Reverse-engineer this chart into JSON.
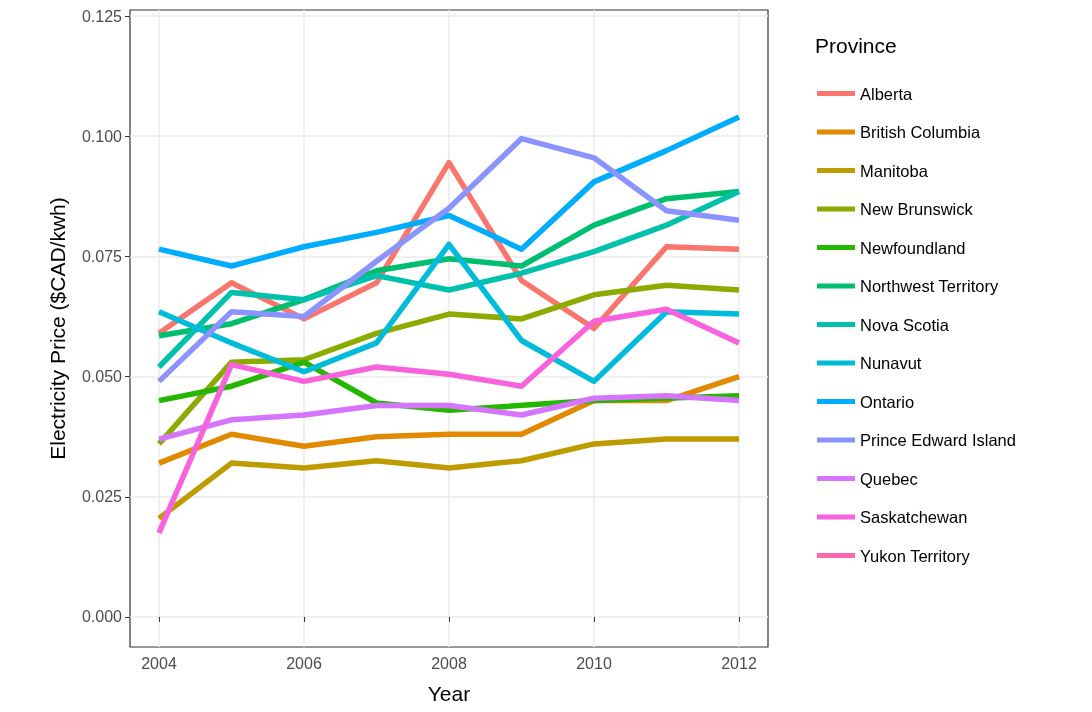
{
  "chart_data": {
    "type": "line",
    "xlabel": "Year",
    "ylabel": "Electricity Price ($CAD/kwh)",
    "legend_title": "Province",
    "legend": "right",
    "grid": true,
    "marker": "none",
    "line_style": "solid",
    "x": [
      2004,
      2005,
      2006,
      2007,
      2008,
      2009,
      2010,
      2011,
      2012
    ],
    "xlim": [
      2003.6,
      2012.4
    ],
    "xticks": [
      2004,
      2006,
      2008,
      2010,
      2012
    ],
    "ylim": [
      -0.00625,
      0.12625
    ],
    "yticks": [
      {
        "value": 0,
        "label": "0.000"
      },
      {
        "value": 0.025,
        "label": "0.025"
      },
      {
        "value": 0.05,
        "label": "0.050"
      },
      {
        "value": 0.075,
        "label": "0.075"
      },
      {
        "value": 0.1,
        "label": "0.100"
      },
      {
        "value": 0.125,
        "label": "0.125"
      }
    ],
    "series": [
      {
        "name": "Alberta",
        "color": "#f8766d",
        "values": [
          0.059,
          0.0695,
          0.062,
          0.0695,
          0.0945,
          0.07,
          0.06,
          0.077,
          0.0765
        ]
      },
      {
        "name": "British Columbia",
        "color": "#e18a00",
        "values": [
          0.032,
          0.038,
          0.0355,
          0.0375,
          0.038,
          0.038,
          0.045,
          0.045,
          0.05
        ]
      },
      {
        "name": "Manitoba",
        "color": "#be9c00",
        "values": [
          0.0205,
          0.032,
          0.031,
          0.0325,
          0.031,
          0.0325,
          0.036,
          0.037,
          0.037
        ]
      },
      {
        "name": "New Brunswick",
        "color": "#8cab00",
        "values": [
          0.036,
          0.053,
          0.0535,
          0.059,
          0.063,
          0.062,
          0.067,
          0.069,
          0.068
        ]
      },
      {
        "name": "Newfoundland",
        "color": "#24b700",
        "values": [
          0.045,
          0.048,
          0.053,
          0.0445,
          0.043,
          null,
          0.045,
          null,
          0.046
        ]
      },
      {
        "name": "Northwest Territory",
        "color": "#00be70",
        "values": [
          0.0585,
          0.061,
          0.066,
          0.072,
          0.0745,
          0.073,
          0.0815,
          0.087,
          0.0885
        ]
      },
      {
        "name": "Nova Scotia",
        "color": "#00c1ab",
        "values": [
          0.052,
          0.0675,
          0.066,
          0.071,
          0.068,
          0.0715,
          0.076,
          0.0815,
          0.0885
        ]
      },
      {
        "name": "Nunavut",
        "color": "#00bbda",
        "values": [
          0.0635,
          0.057,
          0.051,
          0.057,
          0.0775,
          0.0575,
          0.049,
          0.0635,
          0.063
        ]
      },
      {
        "name": "Ontario",
        "color": "#00acfc",
        "values": [
          0.0765,
          0.073,
          0.077,
          0.08,
          0.0835,
          0.0765,
          0.0905,
          0.097,
          0.104
        ]
      },
      {
        "name": "Prince Edward Island",
        "color": "#8b93ff",
        "values": [
          0.049,
          0.0635,
          0.0625,
          0.074,
          0.085,
          0.0995,
          0.0955,
          0.0845,
          0.0825
        ]
      },
      {
        "name": "Quebec",
        "color": "#d575fe",
        "values": [
          0.037,
          0.041,
          0.042,
          0.044,
          0.044,
          0.042,
          0.0455,
          0.046,
          0.045
        ]
      },
      {
        "name": "Saskatchewan",
        "color": "#f962dd",
        "values": [
          0.0175,
          0.0525,
          0.049,
          0.052,
          0.0505,
          0.048,
          0.0615,
          0.064,
          0.057
        ]
      },
      {
        "name": "Yukon Territory",
        "color": "#ff65ac",
        "values": [
          null,
          null,
          null,
          null,
          null,
          null,
          null,
          null,
          null
        ]
      }
    ]
  }
}
